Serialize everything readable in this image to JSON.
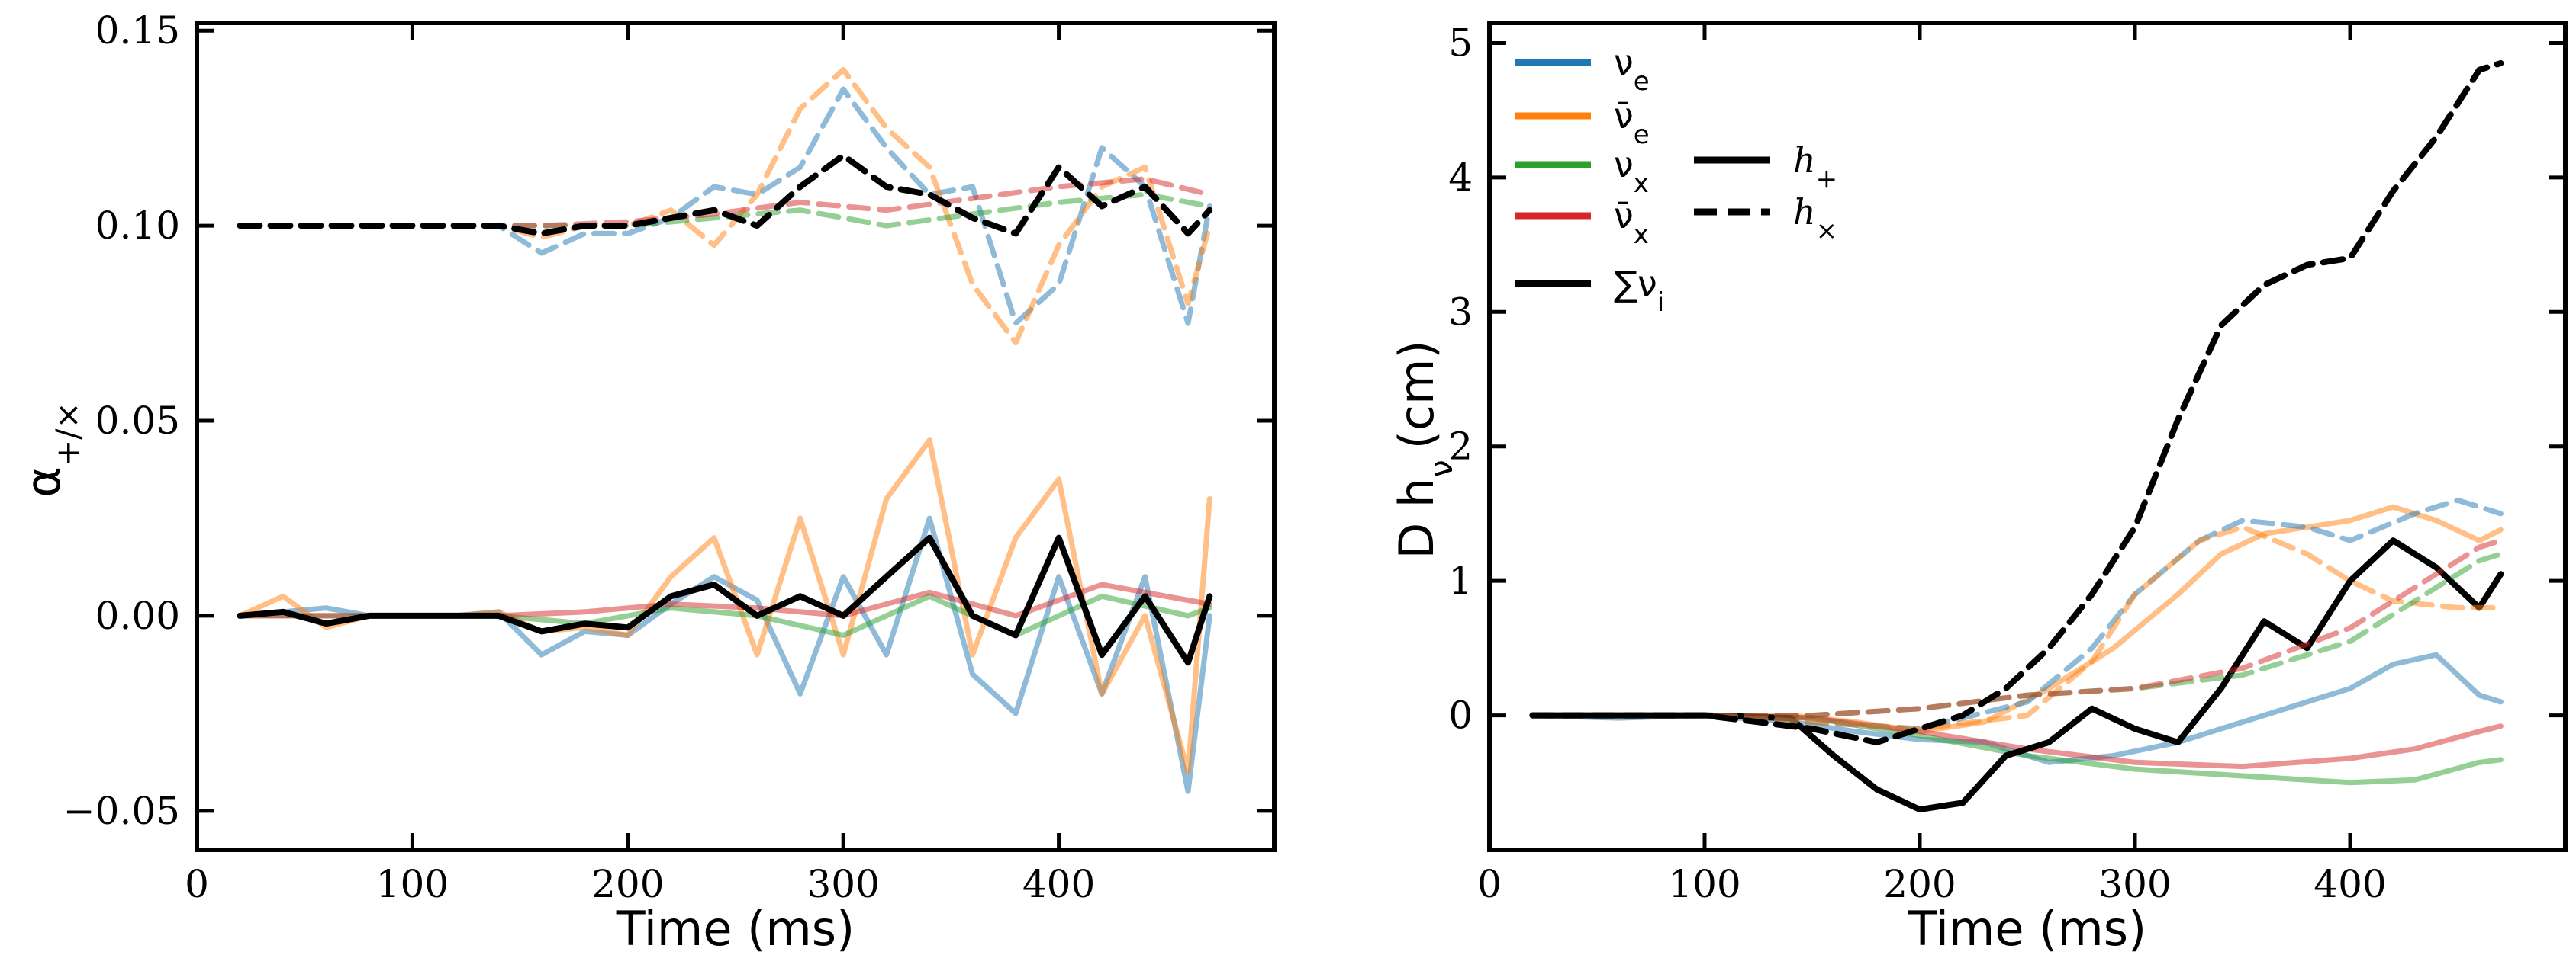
{
  "chart_data": [
    {
      "type": "line",
      "panel": "left",
      "xlabel": "Time (ms)",
      "ylabel": "α",
      "ylabel_subscript": "+/×",
      "xlim": [
        0,
        500
      ],
      "ylim": [
        -0.06,
        0.152
      ],
      "xticks": [
        0,
        100,
        200,
        300,
        400
      ],
      "xtick_labels": [
        "0",
        "100",
        "200",
        "300",
        "400"
      ],
      "yticks": [
        -0.05,
        0.0,
        0.05,
        0.1,
        0.15
      ],
      "ytick_labels": [
        "−0.05",
        "0.00",
        "0.05",
        "0.10",
        "0.15"
      ],
      "series": [
        {
          "name": "ν_e h+",
          "color": "#1f77b4",
          "style": "solid",
          "alpha": 0.5,
          "x": [
            20,
            40,
            60,
            80,
            100,
            120,
            140,
            160,
            180,
            200,
            220,
            240,
            260,
            280,
            300,
            320,
            340,
            360,
            380,
            400,
            420,
            440,
            460,
            470
          ],
          "y": [
            0,
            0.001,
            0.002,
            0,
            0,
            0,
            0.001,
            -0.01,
            -0.004,
            -0.005,
            0.003,
            0.01,
            0.004,
            -0.02,
            0.01,
            -0.01,
            0.025,
            -0.015,
            -0.025,
            0.01,
            -0.02,
            0.01,
            -0.045,
            0.0
          ]
        },
        {
          "name": "ν̄_e h+",
          "color": "#ff7f0e",
          "style": "solid",
          "alpha": 0.5,
          "x": [
            20,
            40,
            60,
            80,
            100,
            120,
            140,
            160,
            180,
            200,
            220,
            240,
            260,
            280,
            300,
            320,
            340,
            360,
            380,
            400,
            420,
            440,
            460,
            470
          ],
          "y": [
            0,
            0.005,
            -0.003,
            0,
            0,
            0,
            0.001,
            -0.004,
            -0.003,
            -0.005,
            0.01,
            0.02,
            -0.01,
            0.025,
            -0.01,
            0.03,
            0.045,
            -0.01,
            0.02,
            0.035,
            -0.02,
            0.0,
            -0.04,
            0.03
          ]
        },
        {
          "name": "ν_x h+",
          "color": "#2ca02c",
          "style": "solid",
          "alpha": 0.5,
          "x": [
            20,
            60,
            100,
            140,
            180,
            220,
            260,
            300,
            340,
            380,
            420,
            460,
            470
          ],
          "y": [
            0,
            0,
            0,
            0,
            -0.002,
            0.002,
            0,
            -0.005,
            0.005,
            -0.005,
            0.005,
            0,
            0.002
          ]
        },
        {
          "name": "ν̄_x h+",
          "color": "#d62728",
          "style": "solid",
          "alpha": 0.5,
          "x": [
            20,
            60,
            100,
            140,
            180,
            220,
            260,
            300,
            340,
            380,
            420,
            460,
            470
          ],
          "y": [
            0,
            0,
            0,
            0,
            0.001,
            0.003,
            0.002,
            0,
            0.006,
            0,
            0.008,
            0.004,
            0.003
          ]
        },
        {
          "name": "Σν_i h+",
          "color": "#000000",
          "style": "solid",
          "alpha": 1.0,
          "x": [
            20,
            40,
            60,
            80,
            100,
            120,
            140,
            160,
            180,
            200,
            220,
            240,
            260,
            280,
            300,
            320,
            340,
            360,
            380,
            400,
            420,
            440,
            460,
            470
          ],
          "y": [
            0,
            0.001,
            -0.002,
            0,
            0,
            0,
            0,
            -0.004,
            -0.002,
            -0.003,
            0.005,
            0.008,
            0.0,
            0.005,
            0.0,
            0.01,
            0.02,
            0.0,
            -0.005,
            0.02,
            -0.01,
            0.005,
            -0.012,
            0.005
          ]
        },
        {
          "name": "ν_e h×",
          "color": "#1f77b4",
          "style": "dashed",
          "alpha": 0.5,
          "x": [
            20,
            60,
            100,
            140,
            160,
            180,
            200,
            220,
            240,
            260,
            280,
            300,
            320,
            340,
            360,
            380,
            400,
            420,
            440,
            460,
            470
          ],
          "y": [
            0.1,
            0.1,
            0.1,
            0.1,
            0.093,
            0.098,
            0.098,
            0.102,
            0.11,
            0.108,
            0.115,
            0.135,
            0.12,
            0.108,
            0.11,
            0.075,
            0.085,
            0.12,
            0.11,
            0.075,
            0.105
          ]
        },
        {
          "name": "ν̄_e h×",
          "color": "#ff7f0e",
          "style": "dashed",
          "alpha": 0.5,
          "x": [
            20,
            60,
            100,
            140,
            160,
            180,
            200,
            220,
            240,
            260,
            280,
            300,
            320,
            340,
            360,
            380,
            400,
            420,
            440,
            460,
            470
          ],
          "y": [
            0.1,
            0.1,
            0.1,
            0.1,
            0.097,
            0.1,
            0.1,
            0.104,
            0.095,
            0.108,
            0.13,
            0.14,
            0.125,
            0.115,
            0.085,
            0.07,
            0.095,
            0.11,
            0.115,
            0.08,
            0.1
          ]
        },
        {
          "name": "ν_x h×",
          "color": "#2ca02c",
          "style": "dashed",
          "alpha": 0.5,
          "x": [
            20,
            100,
            160,
            200,
            240,
            280,
            320,
            360,
            400,
            440,
            470
          ],
          "y": [
            0.1,
            0.1,
            0.1,
            0.1,
            0.102,
            0.104,
            0.1,
            0.103,
            0.106,
            0.108,
            0.105
          ]
        },
        {
          "name": "ν̄_x h×",
          "color": "#d62728",
          "style": "dashed",
          "alpha": 0.5,
          "x": [
            20,
            100,
            160,
            200,
            240,
            280,
            320,
            360,
            400,
            440,
            470
          ],
          "y": [
            0.1,
            0.1,
            0.1,
            0.101,
            0.103,
            0.106,
            0.104,
            0.107,
            0.11,
            0.112,
            0.108
          ]
        },
        {
          "name": "Σν_i h×",
          "color": "#000000",
          "style": "dashed",
          "alpha": 1.0,
          "x": [
            20,
            60,
            100,
            140,
            160,
            180,
            200,
            220,
            240,
            260,
            280,
            300,
            320,
            340,
            360,
            380,
            400,
            420,
            440,
            460,
            470
          ],
          "y": [
            0.1,
            0.1,
            0.1,
            0.1,
            0.098,
            0.1,
            0.1,
            0.102,
            0.104,
            0.1,
            0.11,
            0.118,
            0.11,
            0.108,
            0.102,
            0.098,
            0.115,
            0.105,
            0.11,
            0.098,
            0.104
          ]
        }
      ]
    },
    {
      "type": "line",
      "panel": "right",
      "xlabel": "Time (ms)",
      "ylabel": "D h",
      "ylabel_subscript": "ν",
      "ylabel_unit": "(cm)",
      "xlim": [
        0,
        500
      ],
      "ylim": [
        -1.0,
        5.15
      ],
      "xticks": [
        0,
        100,
        200,
        300,
        400
      ],
      "xtick_labels": [
        "0",
        "100",
        "200",
        "300",
        "400"
      ],
      "yticks": [
        0,
        1,
        2,
        3,
        4,
        5
      ],
      "ytick_labels": [
        "0",
        "1",
        "2",
        "3",
        "4",
        "5"
      ],
      "legend_flavors": [
        {
          "label": "ν",
          "sub": "e",
          "color": "#1f77b4"
        },
        {
          "label": "ν̄",
          "sub": "e",
          "color": "#ff7f0e"
        },
        {
          "label": "ν",
          "sub": "x",
          "color": "#2ca02c"
        },
        {
          "label": "ν̄",
          "sub": "x",
          "color": "#d62728"
        },
        {
          "label": "∑ν",
          "sub": "i",
          "color": "#000000"
        }
      ],
      "legend_polarizations": [
        {
          "label": "h",
          "sub": "+",
          "style": "solid"
        },
        {
          "label": "h",
          "sub": "×",
          "style": "dashed"
        }
      ],
      "series": [
        {
          "name": "ν_e h+",
          "color": "#1f77b4",
          "style": "solid",
          "alpha": 0.5,
          "x": [
            20,
            60,
            100,
            140,
            170,
            200,
            230,
            260,
            290,
            320,
            340,
            360,
            380,
            400,
            420,
            440,
            460,
            470
          ],
          "y": [
            0,
            -0.02,
            0,
            -0.05,
            -0.12,
            -0.18,
            -0.2,
            -0.35,
            -0.3,
            -0.2,
            -0.1,
            0.0,
            0.1,
            0.2,
            0.38,
            0.45,
            0.15,
            0.1
          ]
        },
        {
          "name": "ν̄_e h+",
          "color": "#ff7f0e",
          "style": "solid",
          "alpha": 0.5,
          "x": [
            20,
            60,
            100,
            140,
            170,
            200,
            230,
            260,
            290,
            320,
            340,
            360,
            380,
            400,
            420,
            440,
            460,
            470
          ],
          "y": [
            0,
            0,
            0,
            0,
            -0.05,
            -0.12,
            -0.05,
            0.2,
            0.5,
            0.9,
            1.2,
            1.35,
            1.4,
            1.45,
            1.55,
            1.45,
            1.3,
            1.38
          ]
        },
        {
          "name": "ν_x h+",
          "color": "#2ca02c",
          "style": "solid",
          "alpha": 0.5,
          "x": [
            20,
            100,
            150,
            200,
            250,
            300,
            350,
            400,
            430,
            460,
            470
          ],
          "y": [
            0,
            0,
            -0.02,
            -0.15,
            -0.3,
            -0.4,
            -0.45,
            -0.5,
            -0.48,
            -0.35,
            -0.33
          ]
        },
        {
          "name": "ν̄_x h+",
          "color": "#d62728",
          "style": "solid",
          "alpha": 0.5,
          "x": [
            20,
            100,
            150,
            200,
            250,
            300,
            350,
            400,
            430,
            460,
            470
          ],
          "y": [
            0,
            0,
            -0.02,
            -0.12,
            -0.25,
            -0.35,
            -0.38,
            -0.32,
            -0.25,
            -0.12,
            -0.08
          ]
        },
        {
          "name": "Σν_i h+",
          "color": "#000000",
          "style": "solid",
          "alpha": 1.0,
          "x": [
            20,
            60,
            100,
            140,
            160,
            180,
            200,
            220,
            240,
            260,
            280,
            300,
            320,
            340,
            360,
            380,
            400,
            420,
            440,
            460,
            470
          ],
          "y": [
            0,
            0,
            0,
            -0.02,
            -0.3,
            -0.55,
            -0.7,
            -0.65,
            -0.3,
            -0.2,
            0.05,
            -0.1,
            -0.2,
            0.2,
            0.7,
            0.5,
            1.0,
            1.3,
            1.1,
            0.8,
            1.05
          ]
        },
        {
          "name": "ν_e h×",
          "color": "#1f77b4",
          "style": "dashed",
          "alpha": 0.5,
          "x": [
            20,
            100,
            150,
            200,
            250,
            280,
            300,
            330,
            350,
            380,
            400,
            430,
            450,
            470
          ],
          "y": [
            0,
            0,
            -0.05,
            -0.1,
            0.1,
            0.5,
            0.9,
            1.3,
            1.45,
            1.4,
            1.3,
            1.5,
            1.6,
            1.5
          ]
        },
        {
          "name": "ν̄_e h×",
          "color": "#ff7f0e",
          "style": "dashed",
          "alpha": 0.5,
          "x": [
            20,
            100,
            150,
            200,
            250,
            280,
            300,
            330,
            350,
            380,
            400,
            420,
            450,
            470
          ],
          "y": [
            0,
            0,
            -0.05,
            -0.1,
            0.0,
            0.4,
            0.9,
            1.3,
            1.4,
            1.2,
            1.0,
            0.85,
            0.8,
            0.8
          ]
        },
        {
          "name": "ν_x h×",
          "color": "#2ca02c",
          "style": "dashed",
          "alpha": 0.5,
          "x": [
            20,
            100,
            150,
            200,
            250,
            300,
            350,
            400,
            430,
            460,
            470
          ],
          "y": [
            0,
            0,
            0.0,
            0.05,
            0.15,
            0.2,
            0.3,
            0.55,
            0.85,
            1.15,
            1.2
          ]
        },
        {
          "name": "ν̄_x h×",
          "color": "#d62728",
          "style": "dashed",
          "alpha": 0.5,
          "x": [
            20,
            100,
            150,
            200,
            250,
            300,
            350,
            400,
            430,
            460,
            470
          ],
          "y": [
            0,
            0,
            0.0,
            0.05,
            0.15,
            0.2,
            0.35,
            0.65,
            0.95,
            1.25,
            1.3
          ]
        },
        {
          "name": "Σν_i h×",
          "color": "#000000",
          "style": "dashed",
          "alpha": 1.0,
          "x": [
            20,
            100,
            150,
            180,
            200,
            220,
            240,
            260,
            280,
            300,
            320,
            340,
            360,
            380,
            400,
            420,
            440,
            460,
            470
          ],
          "y": [
            0,
            0,
            -0.1,
            -0.2,
            -0.1,
            0.0,
            0.2,
            0.5,
            0.9,
            1.4,
            2.2,
            2.9,
            3.2,
            3.35,
            3.4,
            3.9,
            4.3,
            4.8,
            4.85
          ]
        }
      ]
    }
  ]
}
